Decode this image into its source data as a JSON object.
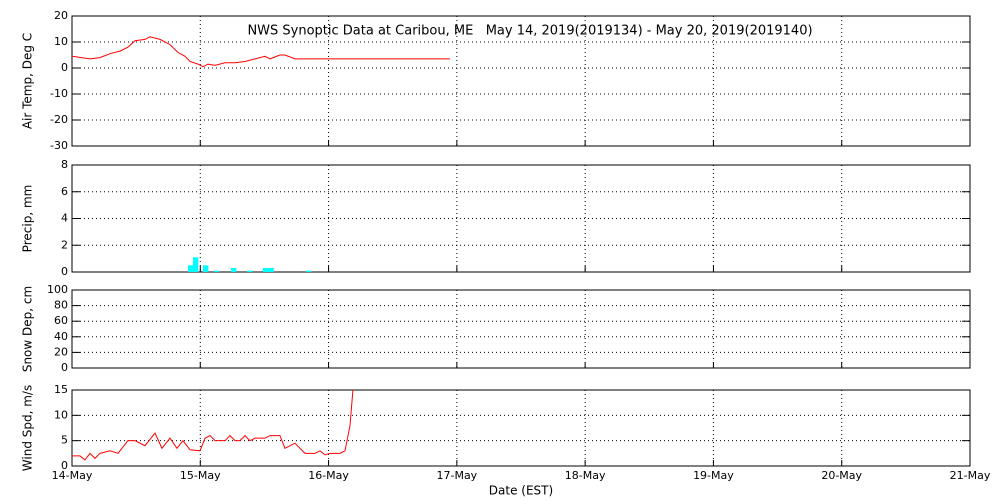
{
  "chart_data": [
    {
      "type": "line",
      "title": "NWS Synoptic Data at Caribou, ME   May 14, 2019(2019134) - May 20, 2019(2019140)",
      "ylabel": "Air Temp, Deg C",
      "ylim": [
        -30,
        20
      ],
      "yticks": [
        -30,
        -20,
        -10,
        0,
        10,
        20
      ],
      "xlim": [
        0,
        7
      ],
      "xticks": [
        0,
        1,
        2,
        3,
        4,
        5,
        6,
        7
      ],
      "grid": true,
      "series": [
        {
          "color": "#ff0000",
          "x": [
            0,
            0.14,
            0.218,
            0.296,
            0.374,
            0.436,
            0.491,
            0.569,
            0.608,
            0.686,
            0.764,
            0.826,
            0.881,
            0.92,
            0.982,
            1.021,
            1.06,
            1.115,
            1.193,
            1.271,
            1.349,
            1.427,
            1.505,
            1.543,
            1.621,
            1.66,
            1.738,
            1.855,
            2.011,
            2.946
          ],
          "values": [
            4.5,
            3.5,
            4,
            5.5,
            6.5,
            8,
            10.5,
            11,
            12,
            11,
            9,
            6,
            4.5,
            2.5,
            1.5,
            0.5,
            1.5,
            1,
            2,
            2,
            2.5,
            3.5,
            4.5,
            3.5,
            5,
            5,
            3.5,
            3.5,
            3.5,
            3.5
          ]
        }
      ]
    },
    {
      "type": "bar",
      "ylabel": "Precip, mm",
      "ylim": [
        0,
        8
      ],
      "yticks": [
        0,
        2,
        4,
        6,
        8
      ],
      "xlim": [
        0,
        7
      ],
      "xticks": [
        0,
        1,
        2,
        3,
        4,
        5,
        6,
        7
      ],
      "grid": true,
      "series": [
        {
          "color": "#00ffff",
          "x": [
            0.904,
            0.943,
            1.021,
            1.107,
            1.239,
            1.364,
            1.489,
            1.531,
            1.824
          ],
          "values": [
            0.5,
            1.1,
            0.5,
            0.1,
            0.3,
            0.1,
            0.3,
            0.3,
            0.1
          ]
        }
      ]
    },
    {
      "type": "line",
      "ylabel": "Snow Dep, cm",
      "ylim": [
        0,
        100
      ],
      "yticks": [
        0,
        20,
        40,
        60,
        80,
        100
      ],
      "xlim": [
        0,
        7
      ],
      "xticks": [
        0,
        1,
        2,
        3,
        4,
        5,
        6,
        7
      ],
      "grid": true
    },
    {
      "type": "line",
      "ylabel": "Wind Spd, m/s",
      "xlabel": "Date (EST)",
      "ylim": [
        0,
        15
      ],
      "yticks": [
        0,
        5,
        10,
        15
      ],
      "xlim": [
        0,
        7
      ],
      "xticks": [
        {
          "value": 0,
          "label": "14-May"
        },
        {
          "value": 1,
          "label": "15-May"
        },
        {
          "value": 2,
          "label": "16-May"
        },
        {
          "value": 3,
          "label": "17-May"
        },
        {
          "value": 4,
          "label": "18-May"
        },
        {
          "value": 5,
          "label": "19-May"
        },
        {
          "value": 6,
          "label": "20-May"
        },
        {
          "value": 7,
          "label": "21-May"
        }
      ],
      "grid": true,
      "series": [
        {
          "color": "#ff0000",
          "x": [
            0,
            0.062,
            0.101,
            0.14,
            0.179,
            0.218,
            0.296,
            0.359,
            0.436,
            0.491,
            0.569,
            0.647,
            0.701,
            0.764,
            0.818,
            0.865,
            0.92,
            0.998,
            1.037,
            1.076,
            1.115,
            1.193,
            1.231,
            1.271,
            1.309,
            1.349,
            1.387,
            1.427,
            1.505,
            1.543,
            1.621,
            1.66,
            1.738,
            1.816,
            1.894,
            1.933,
            1.972,
            2.011,
            2.089,
            2.128,
            2.167,
            2.19
          ],
          "values": [
            2,
            2,
            1.2,
            2.5,
            1.5,
            2.5,
            3,
            2.5,
            5,
            5,
            4,
            6.5,
            3.5,
            5.5,
            3.5,
            5,
            3.2,
            3,
            5.5,
            6,
            5,
            5,
            6,
            5,
            5,
            6,
            5,
            5.5,
            5.5,
            6,
            6,
            3.5,
            4.5,
            2.5,
            2.5,
            3,
            2.2,
            2.5,
            2.5,
            3,
            8,
            15
          ]
        }
      ]
    }
  ]
}
